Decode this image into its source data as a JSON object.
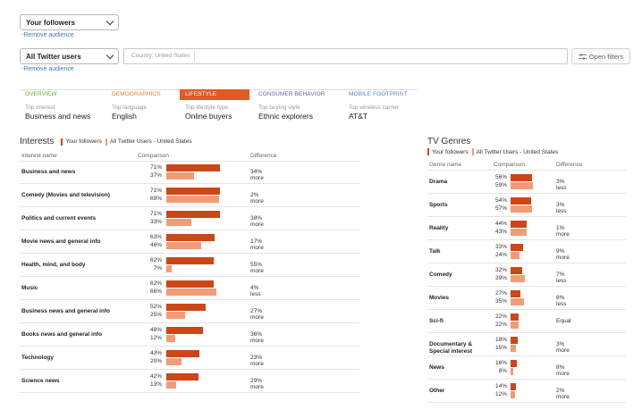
{
  "audience": {
    "selector_label": "Your followers",
    "remove_label": "-Remove audience"
  },
  "comparison": {
    "selector_label": "All Twitter users",
    "remove_label": "-Remove audience",
    "country_tag": "Country: United States",
    "open_filters_label": "Open filters"
  },
  "tabs": [
    {
      "label": "OVERVIEW",
      "sub": "Top interest",
      "value": "Business and news",
      "color": "#6aaa34",
      "active": false
    },
    {
      "label": "DEMOGRAPHICS",
      "sub": "Top language",
      "value": "English",
      "color": "#e77a2b",
      "active": false
    },
    {
      "label": "LIFESTYLE",
      "sub": "Top lifestyle type",
      "value": "Online buyers",
      "color": "#e05a21",
      "active": true
    },
    {
      "label": "CONSUMER BEHAVIOR",
      "sub": "Top buying style",
      "value": "Ethnic explorers",
      "color": "#6a5aa0",
      "active": false
    },
    {
      "label": "MOBILE FOOTPRINT",
      "sub": "Top wireless carrier",
      "value": "AT&T",
      "color": "#5a86b8",
      "active": false
    }
  ],
  "colors": {
    "your_followers": "#cc4616",
    "all_users": "#f39b75"
  },
  "interests": {
    "title": "Interests",
    "legend_a": "Your followers",
    "legend_b": "All Twitter Users - United States",
    "col_name": "Interest name",
    "col_comparison": "Comparison",
    "col_difference": "Difference",
    "rows": [
      {
        "name": "Business and news",
        "a": 71,
        "b": 37,
        "a_label": "71%",
        "b_label": "37%",
        "diff": "34% more"
      },
      {
        "name": "Comedy (Movies and television)",
        "a": 71,
        "b": 69,
        "a_label": "71%",
        "b_label": "69%",
        "diff": "2% more"
      },
      {
        "name": "Politics and current events",
        "a": 71,
        "b": 33,
        "a_label": "71%",
        "b_label": "33%",
        "diff": "38% more"
      },
      {
        "name": "Movie news and general info",
        "a": 63,
        "b": 46,
        "a_label": "63%",
        "b_label": "46%",
        "diff": "17% more"
      },
      {
        "name": "Health, mind, and body",
        "a": 62,
        "b": 7,
        "a_label": "62%",
        "b_label": "7%",
        "diff": "55% more"
      },
      {
        "name": "Music",
        "a": 62,
        "b": 66,
        "a_label": "62%",
        "b_label": "66%",
        "diff": "4% less"
      },
      {
        "name": "Business news and general info",
        "a": 52,
        "b": 25,
        "a_label": "52%",
        "b_label": "25%",
        "diff": "27% more"
      },
      {
        "name": "Books news and general info",
        "a": 48,
        "b": 12,
        "a_label": "48%",
        "b_label": "12%",
        "diff": "36% more"
      },
      {
        "name": "Technology",
        "a": 43,
        "b": 20,
        "a_label": "43%",
        "b_label": "20%",
        "diff": "23% more"
      },
      {
        "name": "Science news",
        "a": 42,
        "b": 13,
        "a_label": "42%",
        "b_label": "13%",
        "diff": "29% more"
      }
    ]
  },
  "tv": {
    "title": "TV Genres",
    "legend_a": "Your followers",
    "legend_b": "All Twitter Users - United States",
    "col_name": "Genre name",
    "col_comparison": "Comparison",
    "col_difference": "Difference",
    "rows": [
      {
        "name": "Drama",
        "a": 56,
        "b": 59,
        "a_label": "56%",
        "b_label": "59%",
        "diff": "3% less"
      },
      {
        "name": "Sports",
        "a": 54,
        "b": 57,
        "a_label": "54%",
        "b_label": "57%",
        "diff": "3% less"
      },
      {
        "name": "Reality",
        "a": 44,
        "b": 43,
        "a_label": "44%",
        "b_label": "43%",
        "diff": "1% more"
      },
      {
        "name": "Talk",
        "a": 33,
        "b": 24,
        "a_label": "33%",
        "b_label": "24%",
        "diff": "9% more"
      },
      {
        "name": "Comedy",
        "a": 32,
        "b": 39,
        "a_label": "32%",
        "b_label": "39%",
        "diff": "7% less"
      },
      {
        "name": "Movies",
        "a": 27,
        "b": 35,
        "a_label": "27%",
        "b_label": "35%",
        "diff": "8% less"
      },
      {
        "name": "Sci-fi",
        "a": 22,
        "b": 22,
        "a_label": "22%",
        "b_label": "22%",
        "diff": "Equal"
      },
      {
        "name": "Documentary & Special interest",
        "a": 18,
        "b": 15,
        "a_label": "18%",
        "b_label": "15%",
        "diff": "3% more"
      },
      {
        "name": "News",
        "a": 16,
        "b": 8,
        "a_label": "16%",
        "b_label": "8%",
        "diff": "8% more"
      },
      {
        "name": "Other",
        "a": 14,
        "b": 12,
        "a_label": "14%",
        "b_label": "12%",
        "diff": "2% more"
      }
    ]
  }
}
